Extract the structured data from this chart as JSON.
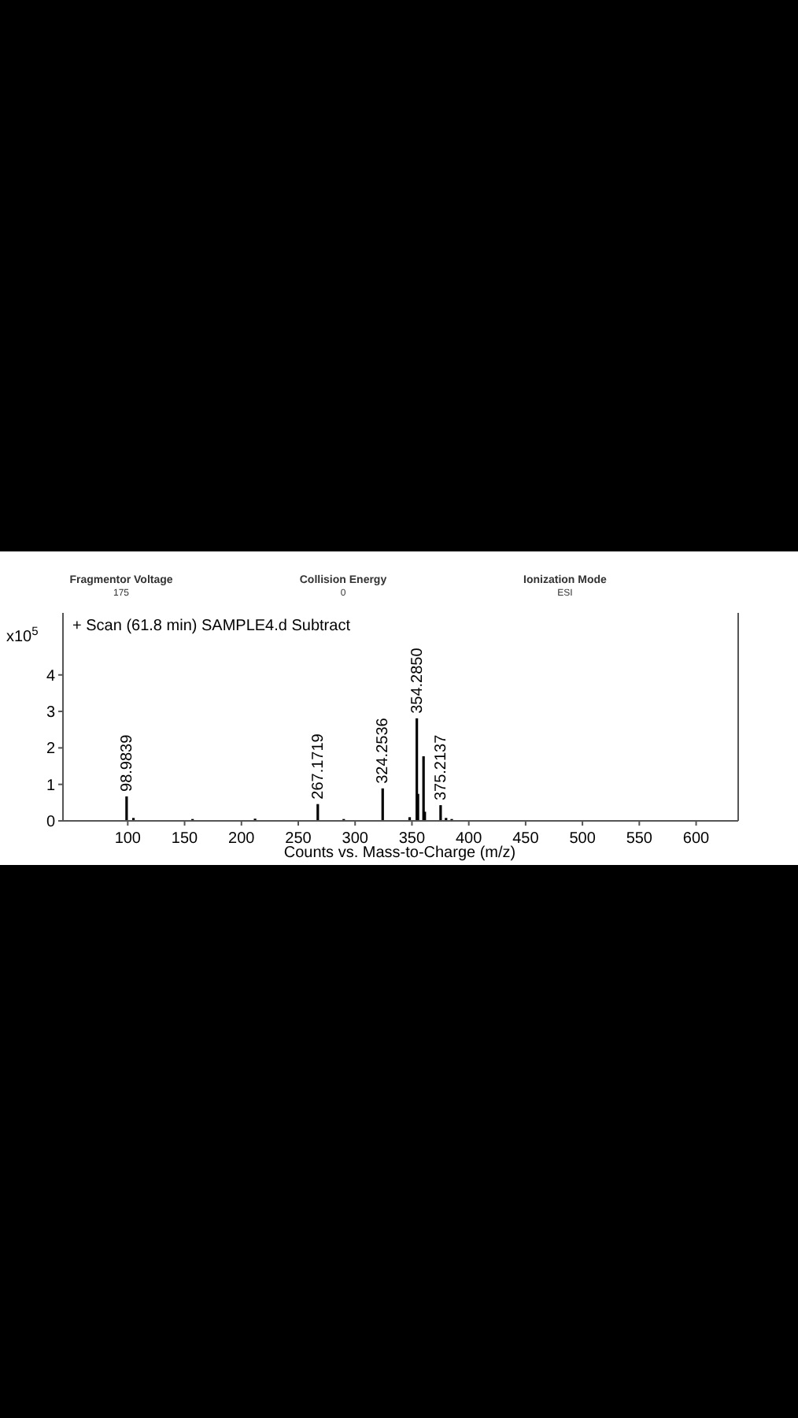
{
  "chart_data": {
    "type": "bar",
    "title": "+ Scan (61.8 min) SAMPLE4.d  Subtract",
    "xlabel": "Counts vs. Mass-to-Charge (m/z)",
    "ylabel": "x10$^{5}$",
    "x": [
      98.9839,
      105,
      157,
      212,
      267.1719,
      290,
      324.2536,
      348,
      354.285,
      355.29,
      360.2,
      361.3,
      375.2137,
      380,
      385
    ],
    "values": [
      0.67,
      0.08,
      0.05,
      0.06,
      0.46,
      0.05,
      0.89,
      0.1,
      2.81,
      0.74,
      1.77,
      0.25,
      0.43,
      0.08,
      0.05
    ],
    "color": "#000000",
    "xlim": [
      43,
      637
    ],
    "xticks": [
      100,
      150,
      200,
      250,
      300,
      350,
      400,
      450,
      500,
      550,
      600
    ],
    "ylim": [
      0,
      5.7
    ],
    "yticks": [
      0,
      1,
      2,
      3,
      4
    ],
    "grid": false,
    "annotations": [
      "Fragmentor Voltage",
      "175",
      "Collision Energy",
      "0",
      "Ionization Mode",
      "ESI",
      {
        "text": "98.9839",
        "x": 98.9839,
        "y": 0.67
      },
      {
        "text": "267.1719",
        "x": 267.1719,
        "y": 0.46
      },
      {
        "text": "324.2536",
        "x": 324.2536,
        "y": 0.89
      },
      {
        "text": "354.2850",
        "x": 354.285,
        "y": 2.81
      },
      {
        "text": "375.2137",
        "x": 375.2137,
        "y": 0.43
      }
    ]
  }
}
